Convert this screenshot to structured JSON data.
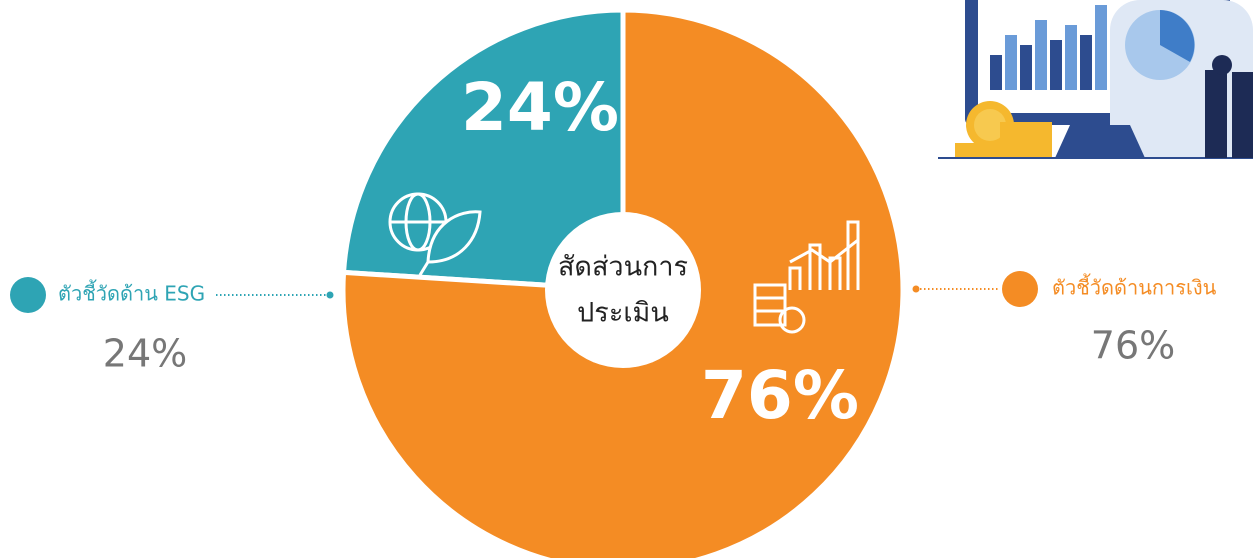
{
  "chart_data": {
    "type": "pie",
    "donut": true,
    "categories": [
      "ตัวชี้วัดด้าน ESG",
      "ตัวชี้วัดด้านการเงิน"
    ],
    "values": [
      24,
      76
    ],
    "value_labels": [
      "24%",
      "76%"
    ],
    "colors": [
      "#2ea4b4",
      "#f48c24"
    ],
    "center_label": [
      "สัดส่วนการ",
      "ประเมิน"
    ]
  }
}
